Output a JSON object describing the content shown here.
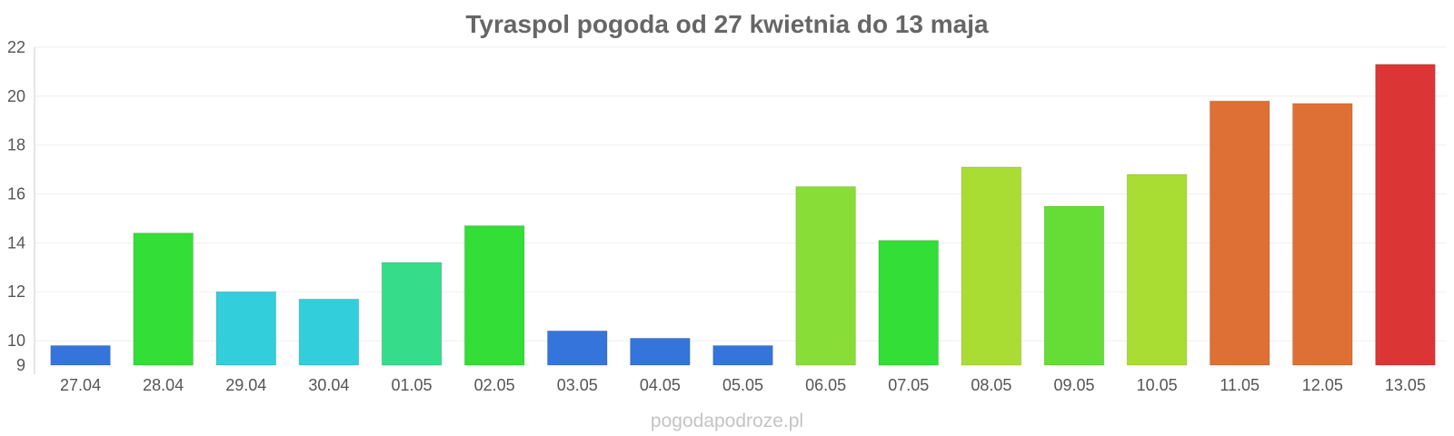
{
  "chart_data": {
    "type": "bar",
    "title": "Tyraspol pogoda od 27 kwietnia do 13 maja",
    "xlabel": "",
    "ylabel": "",
    "ylim": [
      9,
      22
    ],
    "yticks": [
      9,
      10,
      12,
      14,
      16,
      18,
      20,
      22
    ],
    "grid": true,
    "categories": [
      "27.04",
      "28.04",
      "29.04",
      "30.04",
      "01.05",
      "02.05",
      "03.05",
      "04.05",
      "05.05",
      "06.05",
      "07.05",
      "08.05",
      "09.05",
      "10.05",
      "11.05",
      "12.05",
      "13.05"
    ],
    "values": [
      9.8,
      14.4,
      12.0,
      11.7,
      13.2,
      14.7,
      10.4,
      10.1,
      9.8,
      16.3,
      14.1,
      17.1,
      15.5,
      16.8,
      19.8,
      19.7,
      21.3
    ],
    "colors": [
      "#3575db",
      "#33de37",
      "#33cedb",
      "#33cedb",
      "#35dc8a",
      "#33de37",
      "#3575db",
      "#3575db",
      "#3575db",
      "#89dd37",
      "#33de37",
      "#aadd33",
      "#66dd37",
      "#aadd33",
      "#df7035",
      "#df7035",
      "#dc3535"
    ]
  },
  "watermark": "pogodapodroze.pl"
}
